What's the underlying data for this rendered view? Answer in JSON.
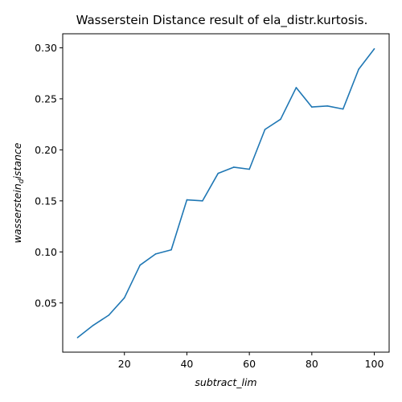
{
  "chart_data": {
    "type": "line",
    "title": "Wasserstein Distance result of ela_distr.kurtosis.",
    "xlabel": "subtract_lim",
    "ylabel_main": "wasserstein",
    "ylabel_sub": "d",
    "ylabel_tail": "istance",
    "xlim": [
      0.25,
      104.75
    ],
    "ylim": [
      0.00175,
      0.31375
    ],
    "xticks": [
      20,
      40,
      60,
      80,
      100
    ],
    "xtick_labels": [
      "20",
      "40",
      "60",
      "80",
      "100"
    ],
    "yticks": [
      0.05,
      0.1,
      0.15,
      0.2,
      0.25,
      0.3
    ],
    "ytick_labels": [
      "0.05",
      "0.10",
      "0.15",
      "0.20",
      "0.25",
      "0.30"
    ],
    "grid": false,
    "series": [
      {
        "color": "#1f77b4",
        "x": [
          5,
          10,
          15,
          20,
          25,
          30,
          35,
          40,
          45,
          50,
          55,
          60,
          65,
          70,
          75,
          80,
          85,
          90,
          95,
          100
        ],
        "y": [
          0.016,
          0.028,
          0.038,
          0.055,
          0.087,
          0.098,
          0.102,
          0.151,
          0.15,
          0.177,
          0.183,
          0.181,
          0.22,
          0.23,
          0.261,
          0.242,
          0.243,
          0.24,
          0.279,
          0.299
        ]
      }
    ]
  }
}
